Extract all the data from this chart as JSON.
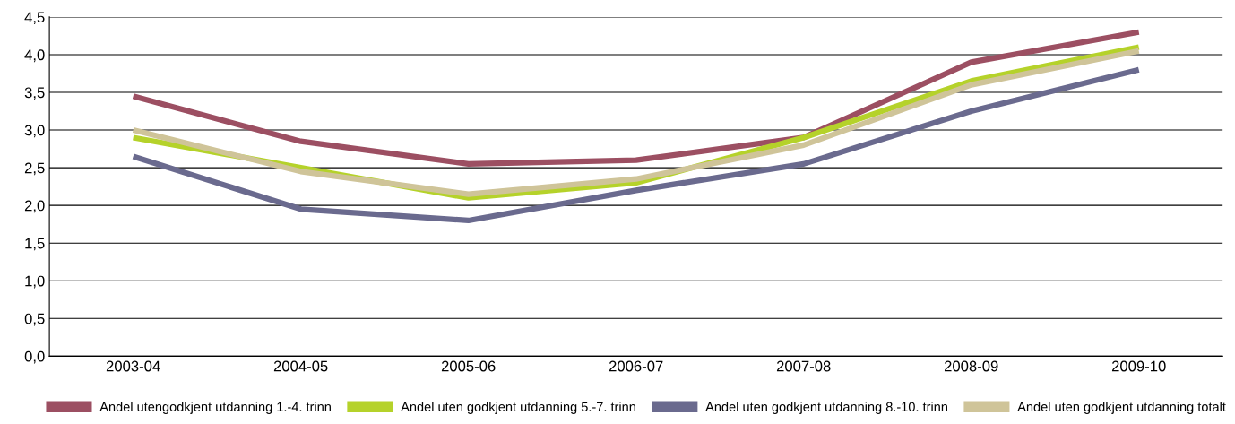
{
  "chart_data": {
    "type": "line",
    "categories": [
      "2003-04",
      "2004-05",
      "2005-06",
      "2006-07",
      "2007-08",
      "2008-09",
      "2009-10"
    ],
    "series": [
      {
        "name": "Andel utengodkjent utdanning 1.-4. trinn",
        "color": "#9c4f62",
        "values": [
          3.45,
          2.85,
          2.55,
          2.6,
          2.9,
          3.9,
          4.3
        ]
      },
      {
        "name": "Andel uten godkjent utdanning 5.-7. trinn",
        "color": "#b5d22a",
        "values": [
          2.9,
          2.5,
          2.1,
          2.3,
          2.9,
          3.65,
          4.1
        ]
      },
      {
        "name": "Andel uten godkjent utdanning 8.-10. trinn",
        "color": "#6a6a8e",
        "values": [
          2.65,
          1.95,
          1.8,
          2.2,
          2.55,
          3.25,
          3.8
        ]
      },
      {
        "name": "Andel uten godkjent utdanning totalt",
        "color": "#cfc499",
        "values": [
          3.0,
          2.45,
          2.15,
          2.35,
          2.8,
          3.6,
          4.05
        ]
      }
    ],
    "ylim": [
      0,
      4.5
    ],
    "yticks": [
      {
        "value": 0,
        "label": "0,0"
      },
      {
        "value": 0.5,
        "label": "0,5"
      },
      {
        "value": 1,
        "label": "1,0"
      },
      {
        "value": 1.5,
        "label": "1,5"
      },
      {
        "value": 2,
        "label": "2,0"
      },
      {
        "value": 2.5,
        "label": "2,5"
      },
      {
        "value": 3,
        "label": "3,0"
      },
      {
        "value": 3.5,
        "label": "3,5"
      },
      {
        "value": 4,
        "label": "4,0"
      },
      {
        "value": 4.5,
        "label": "4,5"
      }
    ],
    "grid": "y",
    "legend": "bottom",
    "marker": "none",
    "line_style": "solid"
  }
}
